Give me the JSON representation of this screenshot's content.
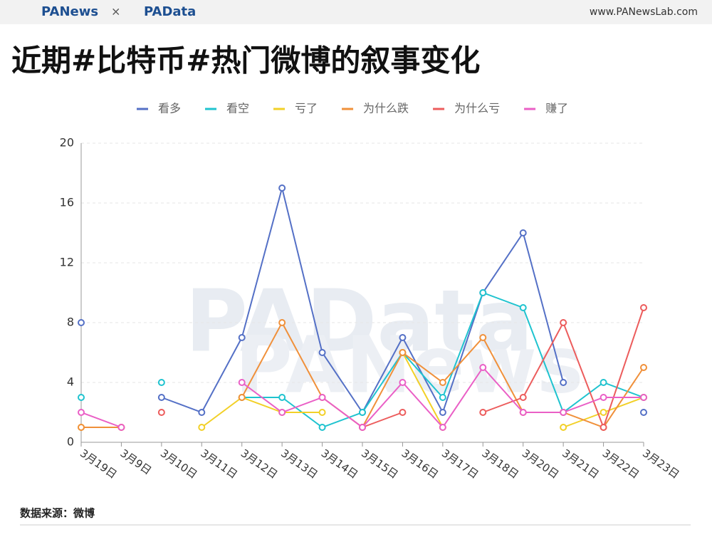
{
  "header": {
    "brand_left": "PANews",
    "separator": "×",
    "brand_right": "PAData",
    "site": "www.PANewsLab.com"
  },
  "watermarks": [
    "PAData",
    "PANews"
  ],
  "chart_data": {
    "type": "line",
    "title": "近期#比特币#热门微博的叙事变化",
    "categories": [
      "3月19日",
      "3月9日",
      "3月10日",
      "3月11日",
      "3月12日",
      "3月13日",
      "3月14日",
      "3月15日",
      "3月16日",
      "3月17日",
      "3月18日",
      "3月20日",
      "3月21日",
      "3月22日",
      "3月23日"
    ],
    "series": [
      {
        "name": "看多",
        "color": "#5470c6",
        "values": [
          8,
          null,
          3,
          2,
          7,
          17,
          6,
          2,
          7,
          2,
          10,
          14,
          4,
          null,
          2
        ]
      },
      {
        "name": "看空",
        "color": "#1fc3cf",
        "values": [
          3,
          null,
          4,
          null,
          3,
          3,
          1,
          2,
          6,
          3,
          10,
          9,
          2,
          4,
          3
        ]
      },
      {
        "name": "亏了",
        "color": "#f2d027",
        "values": [
          1,
          1,
          null,
          1,
          3,
          2,
          2,
          null,
          6,
          1,
          null,
          null,
          1,
          2,
          3
        ]
      },
      {
        "name": "为什么跌",
        "color": "#f0903a",
        "values": [
          1,
          1,
          null,
          null,
          3,
          8,
          3,
          1,
          6,
          4,
          7,
          2,
          2,
          1,
          5
        ]
      },
      {
        "name": "为什么亏",
        "color": "#ec5c5c",
        "values": [
          null,
          null,
          2,
          null,
          null,
          null,
          null,
          1,
          2,
          null,
          2,
          3,
          8,
          1,
          9
        ]
      },
      {
        "name": "赚了",
        "color": "#ea5fc6",
        "values": [
          2,
          1,
          null,
          null,
          4,
          2,
          3,
          1,
          4,
          1,
          5,
          2,
          2,
          3,
          3
        ]
      }
    ],
    "ylim": [
      0,
      20
    ],
    "yticks": [
      0,
      4,
      8,
      12,
      16,
      20
    ],
    "grid": true
  },
  "footer": {
    "source": "数据来源：微博"
  }
}
